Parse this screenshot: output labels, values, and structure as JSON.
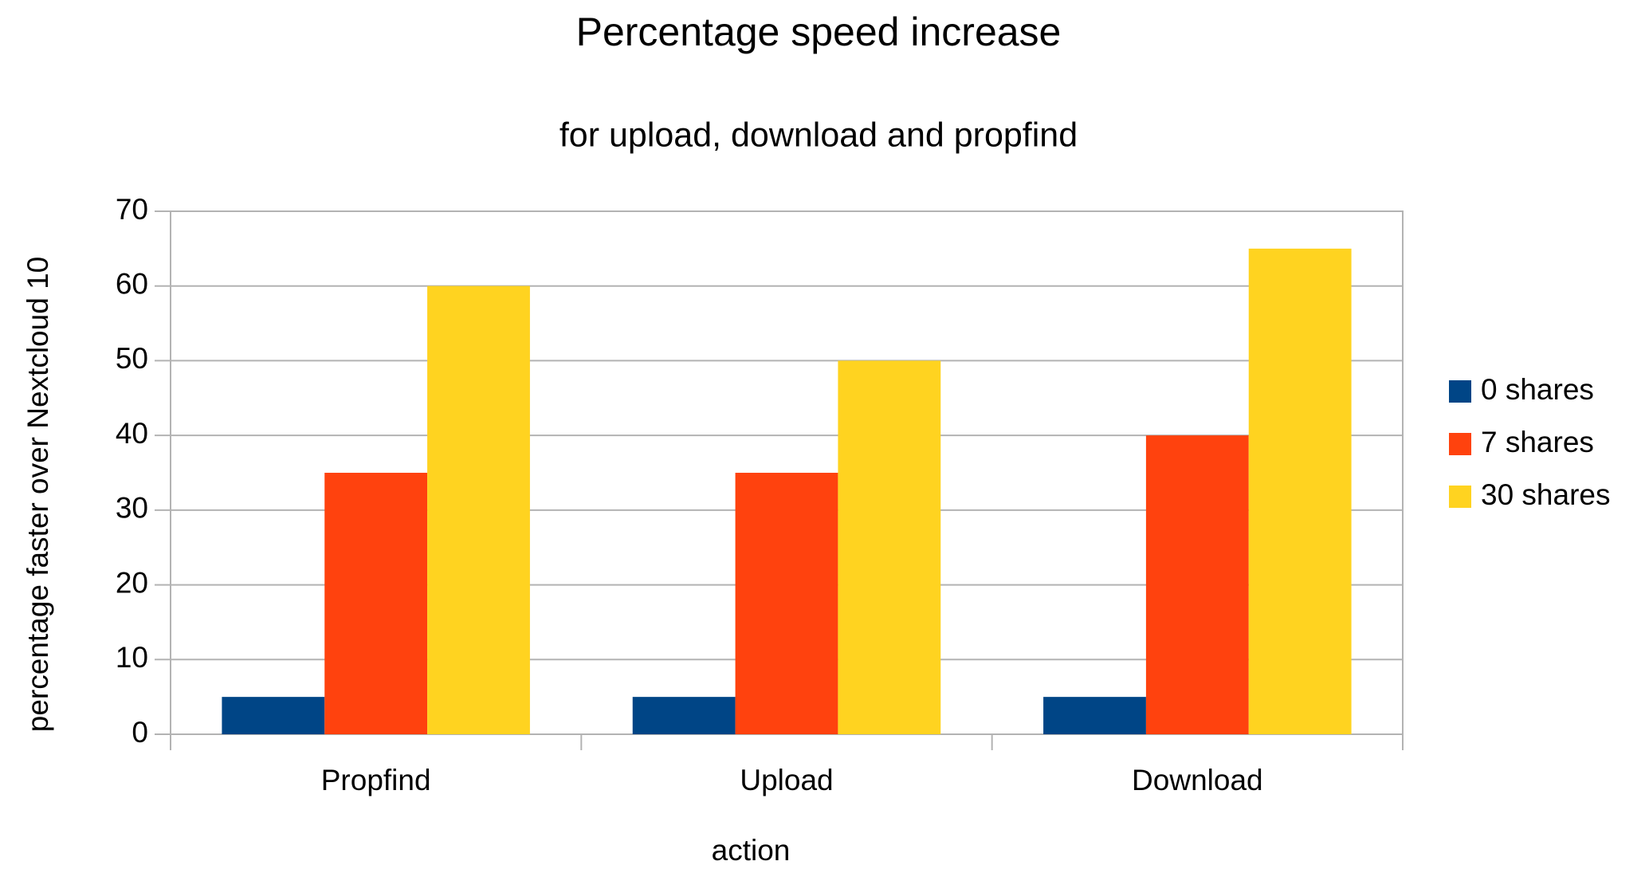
{
  "chart_data": {
    "type": "bar",
    "title": "Percentage speed increase",
    "subtitle": "for upload, download and propfind",
    "x_label": "action",
    "y_label": "percentage faster over Nextcloud 10",
    "categories": [
      "Propfind",
      "Upload",
      "Download"
    ],
    "series": [
      {
        "name": "0 shares",
        "color": "#004586",
        "values": [
          5,
          5,
          5
        ]
      },
      {
        "name": "7 shares",
        "color": "#ff420e",
        "values": [
          35,
          35,
          40
        ]
      },
      {
        "name": "30 shares",
        "color": "#ffd320",
        "values": [
          60,
          50,
          65
        ]
      }
    ],
    "ylim": [
      0,
      70
    ],
    "yticks": [
      0,
      10,
      20,
      30,
      40,
      50,
      60,
      70
    ],
    "grid": true,
    "legend": "right"
  }
}
